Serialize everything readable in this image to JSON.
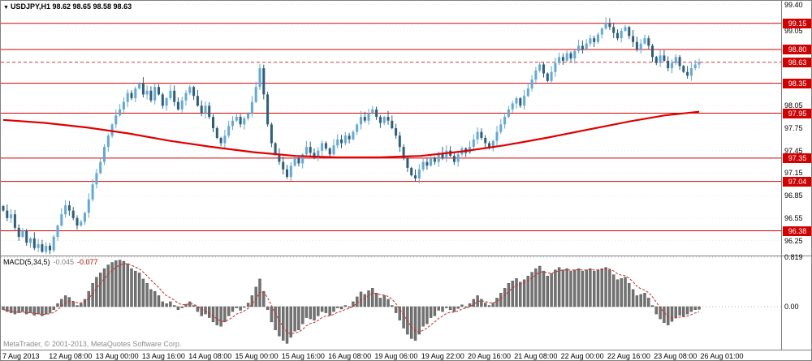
{
  "window": {
    "symbol": "USDJPY,H1",
    "ohlc": "98.62 98.65 98.58 98.63",
    "copyright": "MetaTrader, © 2001-2013, MetaQuotes Software Corp."
  },
  "indicator": {
    "name": "MACD(5,34,5)",
    "main_value": "-0.045",
    "signal_value": "-0.077"
  },
  "colors": {
    "up_candle": "#5fa9dc",
    "down_candle": "#2e5e7e",
    "ma_line": "#e00000",
    "level_line": "#d40000",
    "price_box_bg": "#d40000",
    "grid": "#ececec",
    "histogram_bar": "#737373",
    "histogram_edge": "#4a4a4a",
    "signal_line": "#dd2222",
    "macd_level": "#b5b5b5"
  },
  "chart_data": [
    {
      "type": "candlestick",
      "title": "USDJPY,H1",
      "current_ohlc": {
        "open": 98.62,
        "high": 98.65,
        "low": 98.58,
        "close": 98.63
      },
      "y_range": [
        96.05,
        99.45
      ],
      "axis_ticks": [
        99.4,
        99.05,
        98.05,
        97.75,
        97.45,
        97.15,
        96.85,
        96.55,
        96.25
      ],
      "level_lines": [
        99.15,
        98.8,
        98.35,
        97.95,
        97.35,
        97.04,
        96.38
      ],
      "current_price": 98.63,
      "ma_label": "moving-average-red",
      "ma_points": [
        [
          0.0,
          97.86
        ],
        [
          0.06,
          97.82
        ],
        [
          0.12,
          97.76
        ],
        [
          0.18,
          97.68
        ],
        [
          0.24,
          97.58
        ],
        [
          0.3,
          97.5
        ],
        [
          0.36,
          97.43
        ],
        [
          0.42,
          97.38
        ],
        [
          0.48,
          97.36
        ],
        [
          0.54,
          97.36
        ],
        [
          0.6,
          97.38
        ],
        [
          0.66,
          97.44
        ],
        [
          0.72,
          97.52
        ],
        [
          0.78,
          97.62
        ],
        [
          0.84,
          97.73
        ],
        [
          0.9,
          97.84
        ],
        [
          0.95,
          97.92
        ],
        [
          1.0,
          97.97
        ]
      ],
      "closes": [
        96.65,
        96.55,
        96.6,
        96.42,
        96.3,
        96.38,
        96.22,
        96.28,
        96.15,
        96.2,
        96.1,
        96.18,
        96.12,
        96.3,
        96.45,
        96.6,
        96.72,
        96.65,
        96.55,
        96.45,
        96.5,
        96.62,
        96.8,
        97.0,
        97.15,
        97.3,
        97.5,
        97.65,
        97.8,
        97.92,
        98.0,
        98.1,
        98.22,
        98.15,
        98.28,
        98.35,
        98.2,
        98.25,
        98.12,
        98.3,
        98.2,
        98.05,
        98.15,
        98.25,
        98.1,
        98.0,
        98.12,
        98.22,
        98.3,
        98.18,
        98.05,
        97.95,
        98.05,
        97.9,
        97.75,
        97.62,
        97.55,
        97.65,
        97.78,
        97.85,
        97.9,
        97.8,
        97.88,
        97.95,
        98.1,
        98.3,
        98.55,
        98.2,
        97.8,
        97.55,
        97.4,
        97.3,
        97.2,
        97.1,
        97.25,
        97.35,
        97.28,
        97.4,
        97.5,
        97.42,
        97.35,
        97.45,
        97.55,
        97.48,
        97.4,
        97.52,
        97.6,
        97.55,
        97.65,
        97.6,
        97.7,
        97.8,
        97.9,
        97.85,
        97.95,
        98.0,
        97.9,
        97.82,
        97.9,
        97.85,
        97.75,
        97.65,
        97.5,
        97.35,
        97.22,
        97.12,
        97.08,
        97.2,
        97.3,
        97.25,
        97.35,
        97.3,
        97.42,
        97.35,
        97.45,
        97.38,
        97.3,
        97.4,
        97.48,
        97.42,
        97.5,
        97.6,
        97.7,
        97.62,
        97.55,
        97.48,
        97.58,
        97.7,
        97.8,
        97.9,
        98.0,
        98.08,
        98.15,
        98.05,
        98.18,
        98.28,
        98.4,
        98.52,
        98.6,
        98.48,
        98.38,
        98.5,
        98.62,
        98.7,
        98.65,
        98.75,
        98.68,
        98.78,
        98.85,
        98.8,
        98.88,
        98.95,
        98.9,
        99.0,
        99.08,
        99.15,
        99.1,
        99.02,
        98.95,
        99.05,
        99.1,
        98.98,
        98.9,
        98.8,
        98.88,
        98.95,
        98.85,
        98.7,
        98.62,
        98.72,
        98.65,
        98.55,
        98.62,
        98.7,
        98.58,
        98.5,
        98.45,
        98.55,
        98.6,
        98.63
      ],
      "x_labels": [
        "7 Aug 2013",
        "12 Aug 08:00",
        "13 Aug 00:00",
        "13 Aug 16:00",
        "14 Aug 08:00",
        "15 Aug 00:00",
        "15 Aug 16:00",
        "16 Aug 08:00",
        "19 Aug 06:00",
        "19 Aug 22:00",
        "20 Aug 16:00",
        "21 Aug 08:00",
        "22 Aug 00:00",
        "22 Aug 16:00",
        "23 Aug 08:00",
        "26 Aug 01:00"
      ]
    },
    {
      "type": "bar",
      "name": "MACD(5,34,5)",
      "main_value": -0.045,
      "signal_value": -0.077,
      "y_max": 0.819,
      "y_min": -0.7,
      "axis_labels": [
        {
          "value": 0.819,
          "text": "0.819"
        },
        {
          "value": 0.0,
          "text": "0.00"
        }
      ],
      "values": [
        -0.05,
        -0.08,
        -0.1,
        -0.12,
        -0.1,
        -0.08,
        -0.12,
        -0.1,
        -0.14,
        -0.12,
        -0.15,
        -0.12,
        -0.1,
        -0.05,
        0.05,
        0.12,
        0.18,
        0.15,
        0.08,
        0.02,
        0.05,
        0.12,
        0.25,
        0.38,
        0.48,
        0.55,
        0.62,
        0.68,
        0.72,
        0.75,
        0.76,
        0.74,
        0.7,
        0.62,
        0.58,
        0.55,
        0.45,
        0.38,
        0.28,
        0.25,
        0.18,
        0.08,
        0.05,
        0.08,
        0.02,
        -0.05,
        -0.02,
        0.04,
        0.08,
        0.02,
        -0.08,
        -0.15,
        -0.12,
        -0.18,
        -0.25,
        -0.3,
        -0.32,
        -0.25,
        -0.15,
        -0.08,
        -0.02,
        -0.06,
        0.0,
        0.06,
        0.18,
        0.32,
        0.45,
        0.25,
        -0.05,
        -0.25,
        -0.38,
        -0.48,
        -0.55,
        -0.6,
        -0.5,
        -0.4,
        -0.38,
        -0.28,
        -0.18,
        -0.2,
        -0.22,
        -0.15,
        -0.08,
        -0.1,
        -0.14,
        -0.08,
        -0.02,
        -0.04,
        0.02,
        0.0,
        0.08,
        0.16,
        0.24,
        0.2,
        0.26,
        0.3,
        0.22,
        0.14,
        0.18,
        0.12,
        0.02,
        -0.1,
        -0.22,
        -0.35,
        -0.45,
        -0.52,
        -0.55,
        -0.45,
        -0.32,
        -0.28,
        -0.18,
        -0.15,
        -0.06,
        -0.08,
        -0.02,
        -0.05,
        -0.08,
        -0.03,
        0.03,
        0.0,
        0.05,
        0.12,
        0.18,
        0.12,
        0.06,
        0.02,
        0.06,
        0.14,
        0.22,
        0.3,
        0.38,
        0.42,
        0.46,
        0.4,
        0.44,
        0.5,
        0.56,
        0.62,
        0.66,
        0.58,
        0.5,
        0.54,
        0.6,
        0.64,
        0.6,
        0.62,
        0.58,
        0.6,
        0.62,
        0.58,
        0.6,
        0.62,
        0.58,
        0.6,
        0.62,
        0.64,
        0.6,
        0.52,
        0.44,
        0.46,
        0.48,
        0.38,
        0.28,
        0.18,
        0.2,
        0.22,
        0.14,
        0.02,
        -0.12,
        -0.2,
        -0.26,
        -0.3,
        -0.24,
        -0.18,
        -0.14,
        -0.16,
        -0.12,
        -0.08,
        -0.05,
        -0.045
      ]
    }
  ]
}
